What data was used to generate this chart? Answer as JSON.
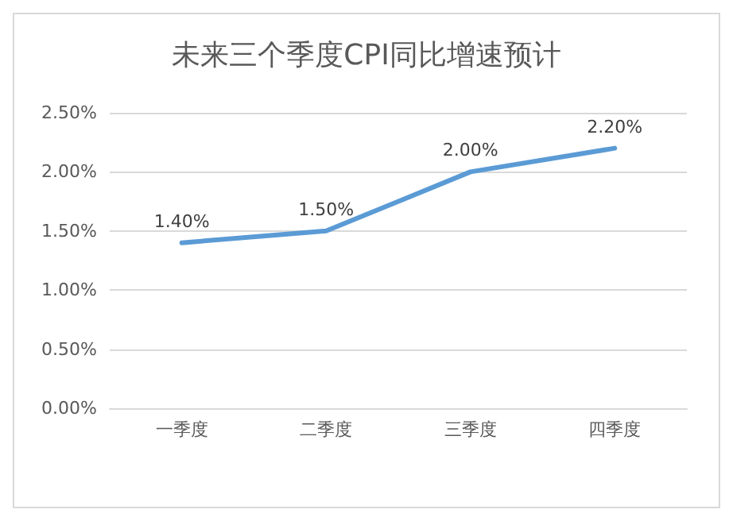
{
  "chart_data": {
    "type": "line",
    "title": "未来三个季度CPI同比增速预计",
    "categories": [
      "一季度",
      "二季度",
      "三季度",
      "四季度"
    ],
    "series": [
      {
        "color": "#5b9bd5",
        "values": [
          1.4,
          1.5,
          2.0,
          2.2
        ],
        "value_labels": [
          "1.40%",
          "1.50%",
          "2.00%",
          "2.20%"
        ]
      }
    ],
    "ylim": [
      0,
      2.5
    ],
    "yticks": [
      {
        "value": 0,
        "label": "0.00%"
      },
      {
        "value": 0.5,
        "label": "0.50%"
      },
      {
        "value": 1,
        "label": "1.00%"
      },
      {
        "value": 1.5,
        "label": "1.50%"
      },
      {
        "value": 2,
        "label": "2.00%"
      },
      {
        "value": 2.5,
        "label": "2.50%"
      }
    ],
    "grid": "y",
    "marker": "none",
    "line_style": "solid"
  }
}
